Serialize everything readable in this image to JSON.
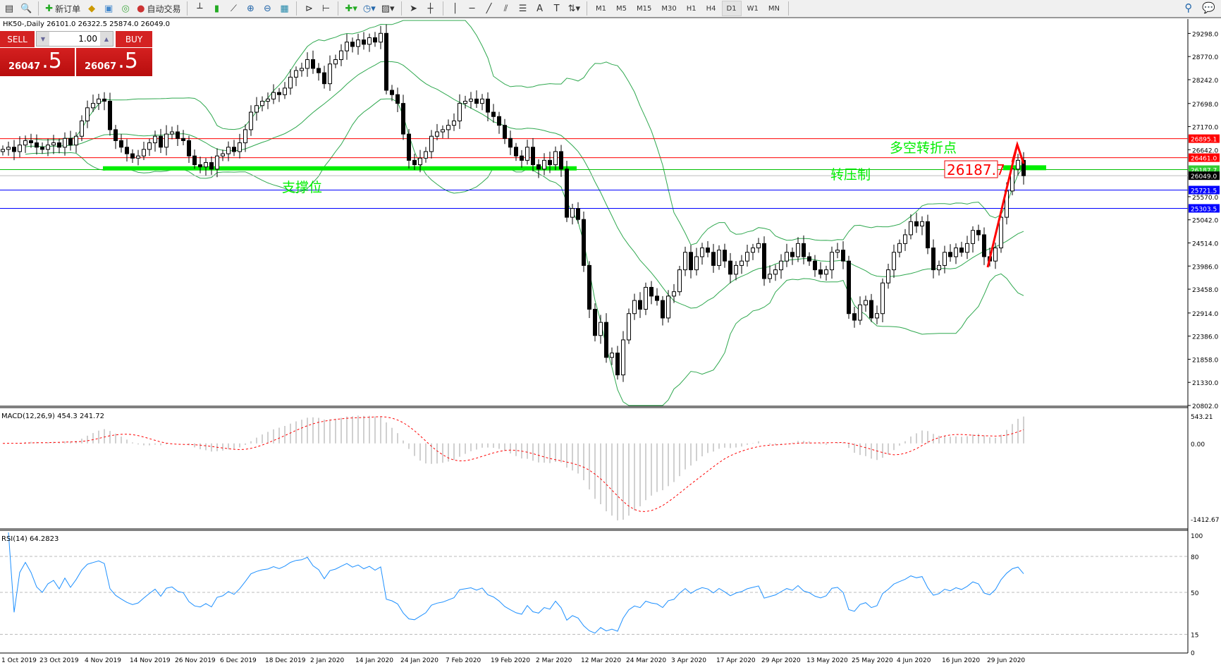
{
  "toolbar": {
    "new_order": "新订单",
    "auto_trading": "自动交易",
    "timeframes": [
      "M1",
      "M5",
      "M15",
      "M30",
      "H1",
      "H4",
      "D1",
      "W1",
      "MN"
    ],
    "active_timeframe": "D1"
  },
  "chart_header": "HK50-,Daily  26101.0 26322.5 25874.0 26049.0",
  "trade_panel": {
    "sell_label": "SELL",
    "buy_label": "BUY",
    "lot": "1.00",
    "sell_big": "26047",
    "sell_small": ".5",
    "buy_big": "26067",
    "buy_small": ".5"
  },
  "colors": {
    "bull_bear": "#000000",
    "bands": "#2fa84f",
    "macd_hist": "#c0c0c0",
    "macd_signal": "#ff0000",
    "rsi": "#1e90ff",
    "resistance": "#ff0000",
    "support_blue": "#0000ff",
    "annotation": "#00ee00"
  },
  "annotations": {
    "support": "支撑位",
    "resistance_turn": "转压制",
    "pivot": "多空转折点",
    "price_box": "26187.7"
  },
  "chart_data": [
    {
      "type": "candlestick",
      "title": "HK50-,Daily",
      "indicators": [
        "Bollinger Bands",
        "MACD(12,26,9)",
        "RSI(14)"
      ],
      "ylim": [
        20802.0,
        29298.0
      ],
      "y_ticks": [
        "29298.0",
        "28770.0",
        "28242.0",
        "27698.0",
        "27170.0",
        "26642.0",
        "25570.0",
        "25042.0",
        "24514.0",
        "23986.0",
        "23458.0",
        "22914.0",
        "22386.0",
        "21858.0",
        "21330.0",
        "20802.0"
      ],
      "x_ticks": [
        "1 Oct 2019",
        "23 Oct 2019",
        "4 Nov 2019",
        "14 Nov 2019",
        "26 Nov 2019",
        "6 Dec 2019",
        "18 Dec 2019",
        "2 Jan 2020",
        "14 Jan 2020",
        "24 Jan 2020",
        "7 Feb 2020",
        "19 Feb 2020",
        "2 Mar 2020",
        "12 Mar 2020",
        "24 Mar 2020",
        "3 Apr 2020",
        "17 Apr 2020",
        "29 Apr 2020",
        "13 May 2020",
        "25 May 2020",
        "4 Jun 2020",
        "16 Jun 2020",
        "29 Jun 2020"
      ],
      "closes": [
        26650,
        26700,
        26600,
        26750,
        26850,
        26800,
        26700,
        26650,
        26750,
        26800,
        26700,
        26900,
        26750,
        26950,
        27300,
        27600,
        27700,
        27800,
        27750,
        27100,
        26850,
        26700,
        26550,
        26450,
        26500,
        26650,
        26800,
        26950,
        26700,
        27000,
        27050,
        26900,
        26850,
        26500,
        26300,
        26250,
        26350,
        26200,
        26500,
        26550,
        26700,
        26600,
        26800,
        27100,
        27500,
        27650,
        27750,
        27800,
        27950,
        27900,
        28050,
        28300,
        28450,
        28500,
        28700,
        28500,
        28400,
        28150,
        28600,
        28700,
        28900,
        29100,
        29000,
        29150,
        29050,
        29200,
        29100,
        29300,
        28000,
        27900,
        27700,
        27000,
        26400,
        26300,
        26450,
        26600,
        26950,
        27050,
        27100,
        27200,
        27300,
        27700,
        27750,
        27800,
        27700,
        27800,
        27500,
        27400,
        27200,
        26900,
        26700,
        26500,
        26400,
        26700,
        26300,
        26200,
        26400,
        26300,
        26600,
        26200,
        25100,
        25300,
        25050,
        24000,
        23000,
        22400,
        22700,
        21900,
        22000,
        21500,
        22300,
        22900,
        23200,
        23000,
        23500,
        23300,
        23200,
        22800,
        23300,
        23400,
        23900,
        24300,
        23900,
        24200,
        24400,
        24300,
        24000,
        24350,
        24100,
        23800,
        24000,
        24100,
        24300,
        24400,
        24500,
        23700,
        23800,
        23900,
        24100,
        24300,
        24200,
        24500,
        24200,
        24100,
        23900,
        23800,
        23900,
        24300,
        24350,
        24100,
        22900,
        22750,
        23100,
        23200,
        22800,
        22900,
        23600,
        23900,
        24300,
        24500,
        24700,
        25000,
        24900,
        25000,
        24400,
        23900,
        24000,
        24300,
        24200,
        24400,
        24300,
        24500,
        24800,
        24700,
        24200,
        24100,
        24400,
        25100,
        25700,
        26200,
        26400,
        26049
      ],
      "last_ohlc": {
        "open": 26101.0,
        "high": 26322.5,
        "low": 25874.0,
        "close": 26049.0
      },
      "horizontal_lines": [
        {
          "price": 26895.1,
          "label": "26895.1",
          "color": "#ff0000"
        },
        {
          "price": 26461.0,
          "label": "26461.0",
          "color": "#ff0000"
        },
        {
          "price": 26187.7,
          "label": "26187.7",
          "color": "#00c000"
        },
        {
          "price": 26049.0,
          "label": "26049.0",
          "color": "#000000"
        },
        {
          "price": 25721.5,
          "label": "25721.5",
          "color": "#0000ff"
        },
        {
          "price": 25303.5,
          "label": "25303.5",
          "color": "#0000ff"
        }
      ],
      "support_zone_price": 26216
    },
    {
      "type": "bar+line",
      "title": "MACD(12,26,9)",
      "main": 454.3,
      "signal": 241.72,
      "ylim": [
        -1412.67,
        543.21
      ],
      "y_ticks": [
        "543.21",
        "0.00",
        "-1412.67"
      ]
    },
    {
      "type": "line",
      "title": "RSI(14)",
      "value": 64.2823,
      "ylim": [
        0,
        100
      ],
      "y_ticks": [
        "100",
        "80",
        "50",
        "15",
        "0"
      ],
      "levels": [
        80,
        50,
        15
      ]
    }
  ]
}
